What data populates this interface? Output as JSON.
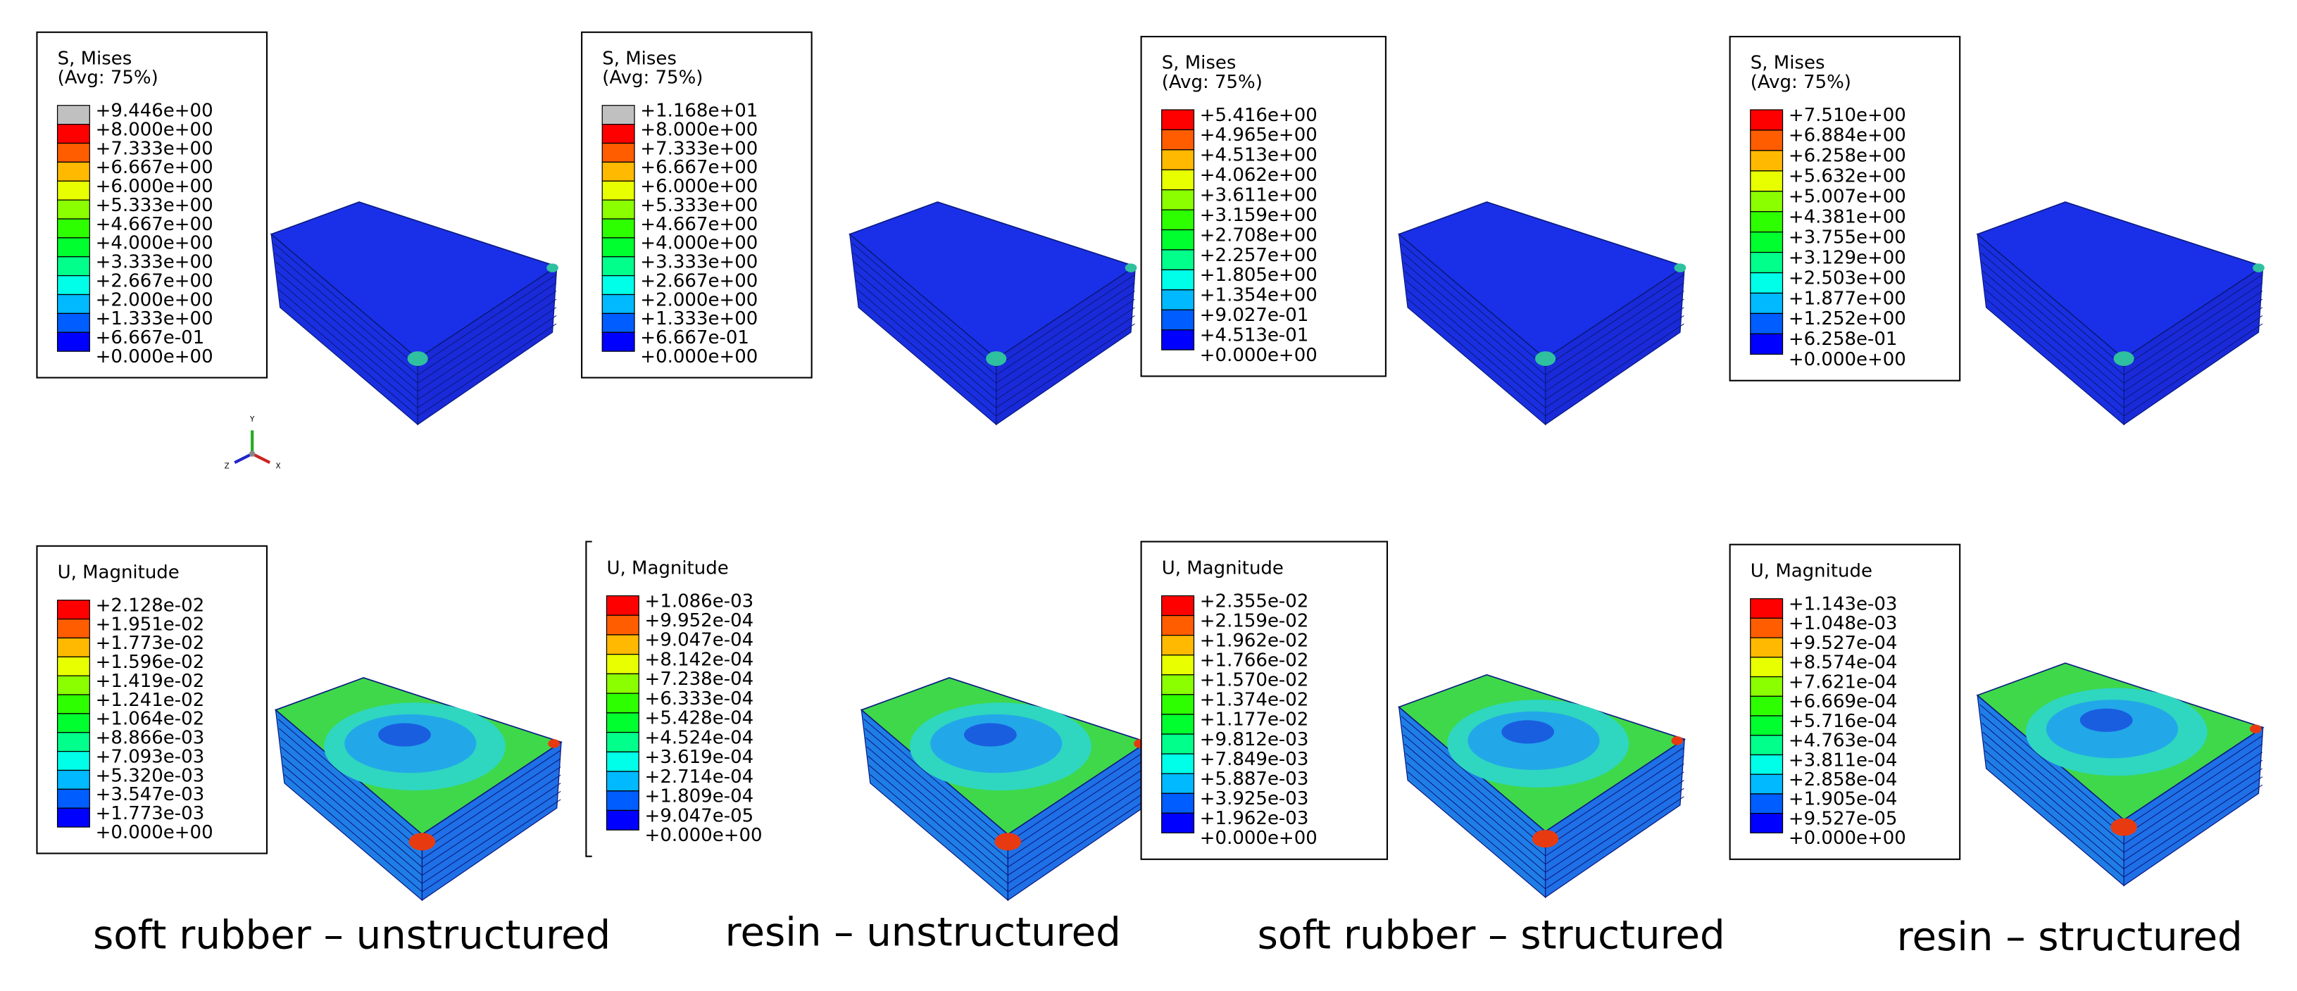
{
  "contour_colors": [
    "#0000ff",
    "#005dff",
    "#00b9ff",
    "#00ffe8",
    "#00ff8b",
    "#00ff2e",
    "#2eff00",
    "#8bff00",
    "#e8ff00",
    "#ffb900",
    "#ff5d00",
    "#ff0000"
  ],
  "panels": [
    {
      "legend": {
        "title": [
          "S, Mises",
          "(Avg: 75%)"
        ],
        "overflow_color": "#c0c0c0",
        "labels": [
          "+9.446e+00",
          "+8.000e+00",
          "+7.333e+00",
          "+6.667e+00",
          "+6.000e+00",
          "+5.333e+00",
          "+4.667e+00",
          "+4.000e+00",
          "+3.333e+00",
          "+2.667e+00",
          "+2.000e+00",
          "+1.333e+00",
          "+6.667e-01",
          "+0.000e+00"
        ]
      }
    },
    {
      "legend": {
        "title": [
          "S, Mises",
          "(Avg: 75%)"
        ],
        "overflow_color": "#c0c0c0",
        "labels": [
          "+1.168e+01",
          "+8.000e+00",
          "+7.333e+00",
          "+6.667e+00",
          "+6.000e+00",
          "+5.333e+00",
          "+4.667e+00",
          "+4.000e+00",
          "+3.333e+00",
          "+2.667e+00",
          "+2.000e+00",
          "+1.333e+00",
          "+6.667e-01",
          "+0.000e+00"
        ]
      }
    },
    {
      "legend": {
        "title": [
          "S, Mises",
          "(Avg: 75%)"
        ],
        "labels": [
          "+5.416e+00",
          "+4.965e+00",
          "+4.513e+00",
          "+4.062e+00",
          "+3.611e+00",
          "+3.159e+00",
          "+2.708e+00",
          "+2.257e+00",
          "+1.805e+00",
          "+1.354e+00",
          "+9.027e-01",
          "+4.513e-01",
          "+0.000e+00"
        ]
      }
    },
    {
      "legend": {
        "title": [
          "S, Mises",
          "(Avg: 75%)"
        ],
        "labels": [
          "+7.510e+00",
          "+6.884e+00",
          "+6.258e+00",
          "+5.632e+00",
          "+5.007e+00",
          "+4.381e+00",
          "+3.755e+00",
          "+3.129e+00",
          "+2.503e+00",
          "+1.877e+00",
          "+1.252e+00",
          "+6.258e-01",
          "+0.000e+00"
        ]
      }
    },
    {
      "legend": {
        "title": [
          "U, Magnitude"
        ],
        "labels": [
          "+2.128e-02",
          "+1.951e-02",
          "+1.773e-02",
          "+1.596e-02",
          "+1.419e-02",
          "+1.241e-02",
          "+1.064e-02",
          "+8.866e-03",
          "+7.093e-03",
          "+5.320e-03",
          "+3.547e-03",
          "+1.773e-03",
          "+0.000e+00"
        ]
      }
    },
    {
      "legend": {
        "title": [
          "U, Magnitude"
        ],
        "labels": [
          "+1.086e-03",
          "+9.952e-04",
          "+9.047e-04",
          "+8.142e-04",
          "+7.238e-04",
          "+6.333e-04",
          "+5.428e-04",
          "+4.524e-04",
          "+3.619e-04",
          "+2.714e-04",
          "+1.809e-04",
          "+9.047e-05",
          "+0.000e+00"
        ]
      }
    },
    {
      "legend": {
        "title": [
          "U, Magnitude"
        ],
        "labels": [
          "+2.355e-02",
          "+2.159e-02",
          "+1.962e-02",
          "+1.766e-02",
          "+1.570e-02",
          "+1.374e-02",
          "+1.177e-02",
          "+9.812e-03",
          "+7.849e-03",
          "+5.887e-03",
          "+3.925e-03",
          "+1.962e-03",
          "+0.000e+00"
        ]
      }
    },
    {
      "legend": {
        "title": [
          "U, Magnitude"
        ],
        "labels": [
          "+1.143e-03",
          "+1.048e-03",
          "+9.527e-04",
          "+8.574e-04",
          "+7.621e-04",
          "+6.669e-04",
          "+5.716e-04",
          "+4.763e-04",
          "+3.811e-04",
          "+2.858e-04",
          "+1.905e-04",
          "+9.527e-05",
          "+0.000e+00"
        ]
      }
    }
  ],
  "triad": [
    "Y",
    "Z",
    "X"
  ],
  "captions": [
    "soft rubber – unstructured",
    "resin – unstructured",
    "soft rubber – structured",
    "resin – structured"
  ]
}
